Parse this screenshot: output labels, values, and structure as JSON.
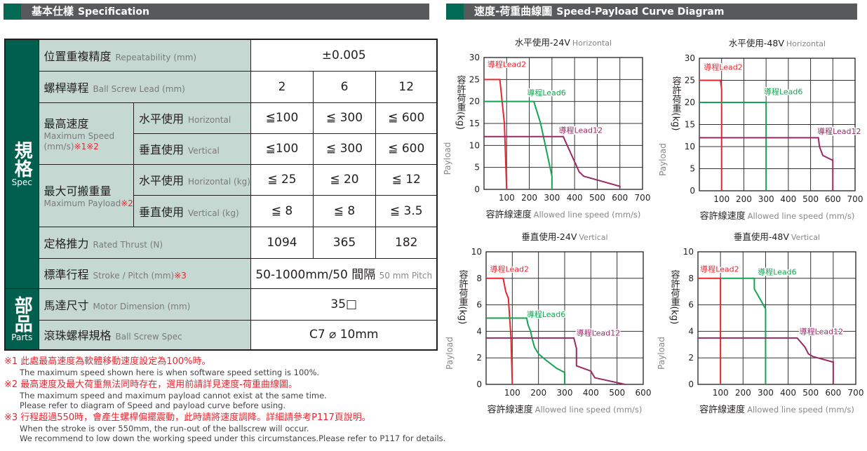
{
  "spec_header": {
    "cn": "基本仕樣",
    "en": "Specification"
  },
  "curve_header": {
    "cn": "速度-荷重曲線圖",
    "en": "Speed-Payload Curve Diagram"
  },
  "groups": {
    "spec": {
      "cn": "規格",
      "en": "Spec"
    },
    "parts": {
      "cn": "部品",
      "en": "Parts"
    }
  },
  "rows": {
    "repeatability": {
      "cn": "位置重複精度",
      "en": "Repeatability (mm)",
      "value": "±0.005"
    },
    "lead": {
      "cn": "螺桿導程",
      "en": "Ball Screw Lead (mm)",
      "values": [
        "2",
        "6",
        "12"
      ]
    },
    "speed": {
      "cn": "最高速度",
      "en": "Maximum Speed",
      "unit": "(mm/s)",
      "note": "※1※2",
      "horizontal": {
        "cn": "水平使用",
        "en": "Horizontal",
        "values": [
          "≦100",
          "≦ 300",
          "≦ 600"
        ]
      },
      "vertical": {
        "cn": "垂直使用",
        "en": "Vertical",
        "values": [
          "≦100",
          "≦ 300",
          "≦ 600"
        ]
      }
    },
    "payload": {
      "cn": "最大可搬重量",
      "en": "Maximum Payload",
      "note": "※2",
      "horizontal": {
        "cn": "水平使用",
        "en": "Horizontal (kg)",
        "values": [
          "≦ 25",
          "≦ 20",
          "≦ 12"
        ]
      },
      "vertical": {
        "cn": "垂直使用",
        "en": "Vertical (kg)",
        "values": [
          "≦ 8",
          "≦ 8",
          "≦ 3.5"
        ]
      }
    },
    "thrust": {
      "cn": "定格推力",
      "en": "Rated Thrust (N)",
      "values": [
        "1094",
        "365",
        "182"
      ]
    },
    "stroke": {
      "cn": "標準行程",
      "en": "Stroke / Pitch (mm)",
      "note": "※3",
      "value": "50-1000mm/50 間隔",
      "value_en": "50 mm Pitch"
    },
    "motor": {
      "cn": "馬達尺寸",
      "en": "Motor Dimension (mm)",
      "value": "35□"
    },
    "screw": {
      "cn": "滾珠螺桿規格",
      "en": "Ball Screw Spec",
      "value": "C7 ⌀ 10mm"
    }
  },
  "notes": [
    {
      "cn": "※1 此處最高速度為軟體移動速度設定為100%時。",
      "en": [
        "The maximum speed shown here is when software speed setting is 100%."
      ]
    },
    {
      "cn": "※2 最高速度及最大荷重無法同時存在，選用前請詳見速度-荷重曲線圖。",
      "en": [
        "The maximum speed and maximum payload cannot exist at the same time.",
        "Please refer to diagram of Speed and payload curve before using."
      ]
    },
    {
      "cn": "※3 行程超過550時，會產生螺桿偏擺震動，此時請將速度調降。詳細請參考P117頁說明。",
      "en": [
        "When the stroke is over 550mm, the run-out of the ballscrew will occur.",
        "We recommend to low down the working speed under this circumstances.Please refer to P117 for details."
      ]
    }
  ],
  "colors": {
    "lead2": "#e8262f",
    "lead6": "#13a651",
    "lead12": "#9a2a66",
    "green": "#00604d",
    "header": "#58595b"
  },
  "chart_data": [
    {
      "type": "line",
      "title": "水平使用-24V",
      "title_en": "Horizontal",
      "ylabel": "容許荷重(kg)",
      "ylabel_en": "Payload",
      "xlabel": "容許線速度",
      "xlabel_en": "Allowed line speed (mm/s)",
      "xlim": [
        0,
        700
      ],
      "ylim": [
        0,
        30
      ],
      "xticks": [
        100,
        200,
        300,
        400,
        500,
        600,
        700
      ],
      "yticks": [
        0,
        5,
        10,
        15,
        20,
        25,
        30
      ],
      "grid": true,
      "series": [
        {
          "name": "導程Lead2",
          "points": [
            [
              0,
              25
            ],
            [
              70,
              25
            ],
            [
              90,
              15
            ],
            [
              100,
              0
            ]
          ]
        },
        {
          "name": "導程Lead6",
          "points": [
            [
              0,
              20
            ],
            [
              220,
              20
            ],
            [
              250,
              15
            ],
            [
              300,
              3
            ],
            [
              300,
              0
            ]
          ]
        },
        {
          "name": "導程Lead12",
          "points": [
            [
              0,
              12
            ],
            [
              350,
              12
            ],
            [
              420,
              4
            ],
            [
              440,
              3
            ],
            [
              600,
              0.7
            ],
            [
              600,
              0.3
            ]
          ]
        }
      ]
    },
    {
      "type": "line",
      "title": "水平使用-48V",
      "title_en": "Horizontal",
      "ylabel": "容許荷重(kg)",
      "ylabel_en": "Payload",
      "xlabel": "容許線速度",
      "xlabel_en": "Allowed line speed (mm/s)",
      "xlim": [
        0,
        700
      ],
      "ylim": [
        0,
        30
      ],
      "xticks": [
        100,
        200,
        300,
        400,
        500,
        600,
        700
      ],
      "yticks": [
        0,
        5,
        10,
        15,
        20,
        25,
        30
      ],
      "grid": true,
      "series": [
        {
          "name": "導程Lead2",
          "points": [
            [
              0,
              25
            ],
            [
              95,
              25
            ],
            [
              100,
              23
            ],
            [
              100,
              0
            ]
          ]
        },
        {
          "name": "導程Lead6",
          "points": [
            [
              0,
              20
            ],
            [
              300,
              20
            ],
            [
              300,
              0
            ]
          ]
        },
        {
          "name": "導程Lead12",
          "points": [
            [
              0,
              12
            ],
            [
              535,
              12
            ],
            [
              540,
              10
            ],
            [
              555,
              8
            ],
            [
              595,
              7
            ],
            [
              600,
              7
            ],
            [
              600,
              0
            ]
          ]
        }
      ]
    },
    {
      "type": "line",
      "title": "垂直使用-24V",
      "title_en": "Vertical",
      "ylabel": "容許荷重(kg)",
      "ylabel_en": "Payload",
      "xlabel": "容許線速度",
      "xlabel_en": "Allowed line speed (mm/s)",
      "xlim": [
        0,
        600
      ],
      "ylim": [
        0,
        10
      ],
      "xticks": [
        100,
        200,
        300,
        400,
        500,
        600
      ],
      "yticks": [
        0,
        2,
        4,
        6,
        8,
        10
      ],
      "grid": true,
      "series": [
        {
          "name": "導程Lead2",
          "points": [
            [
              0,
              8
            ],
            [
              65,
              8
            ],
            [
              75,
              7
            ],
            [
              85,
              6.5
            ],
            [
              95,
              3.5
            ],
            [
              100,
              0
            ]
          ]
        },
        {
          "name": "導程Lead6",
          "points": [
            [
              0,
              5
            ],
            [
              155,
              5
            ],
            [
              160,
              4.5
            ],
            [
              170,
              4
            ],
            [
              175,
              3.5
            ],
            [
              185,
              2.8
            ],
            [
              200,
              2.3
            ],
            [
              230,
              1.8
            ],
            [
              270,
              1.2
            ],
            [
              290,
              1
            ],
            [
              300,
              0.9
            ],
            [
              300,
              0
            ]
          ]
        },
        {
          "name": "導程Lead12",
          "points": [
            [
              0,
              3.5
            ],
            [
              335,
              3.5
            ],
            [
              345,
              2.7
            ],
            [
              345,
              1.4
            ],
            [
              400,
              1
            ],
            [
              415,
              0.5
            ],
            [
              530,
              0
            ]
          ]
        }
      ]
    },
    {
      "type": "line",
      "title": "垂直使用-48V",
      "title_en": "Vertical",
      "ylabel": "容許荷重(kg)",
      "ylabel_en": "Payload",
      "xlabel": "容許線速度",
      "xlabel_en": "Allowed line speed (mm/s)",
      "xlim": [
        0,
        700
      ],
      "ylim": [
        0,
        10
      ],
      "xticks": [
        100,
        200,
        300,
        400,
        500,
        600,
        700
      ],
      "yticks": [
        0,
        2,
        4,
        6,
        8,
        10
      ],
      "grid": true,
      "series": [
        {
          "name": "導程Lead2",
          "points": [
            [
              0,
              8
            ],
            [
              100,
              8
            ],
            [
              100,
              0
            ]
          ]
        },
        {
          "name": "導程Lead6",
          "points": [
            [
              105,
              8
            ],
            [
              250,
              8
            ],
            [
              250,
              7.2
            ],
            [
              300,
              5.7
            ],
            [
              300,
              0
            ]
          ]
        },
        {
          "name": "導程Lead12",
          "points": [
            [
              0,
              3.5
            ],
            [
              440,
              3.5
            ],
            [
              475,
              2.8
            ],
            [
              490,
              2.3
            ],
            [
              510,
              2.1
            ],
            [
              595,
              1.7
            ],
            [
              600,
              1.7
            ],
            [
              600,
              0
            ]
          ]
        }
      ]
    }
  ]
}
